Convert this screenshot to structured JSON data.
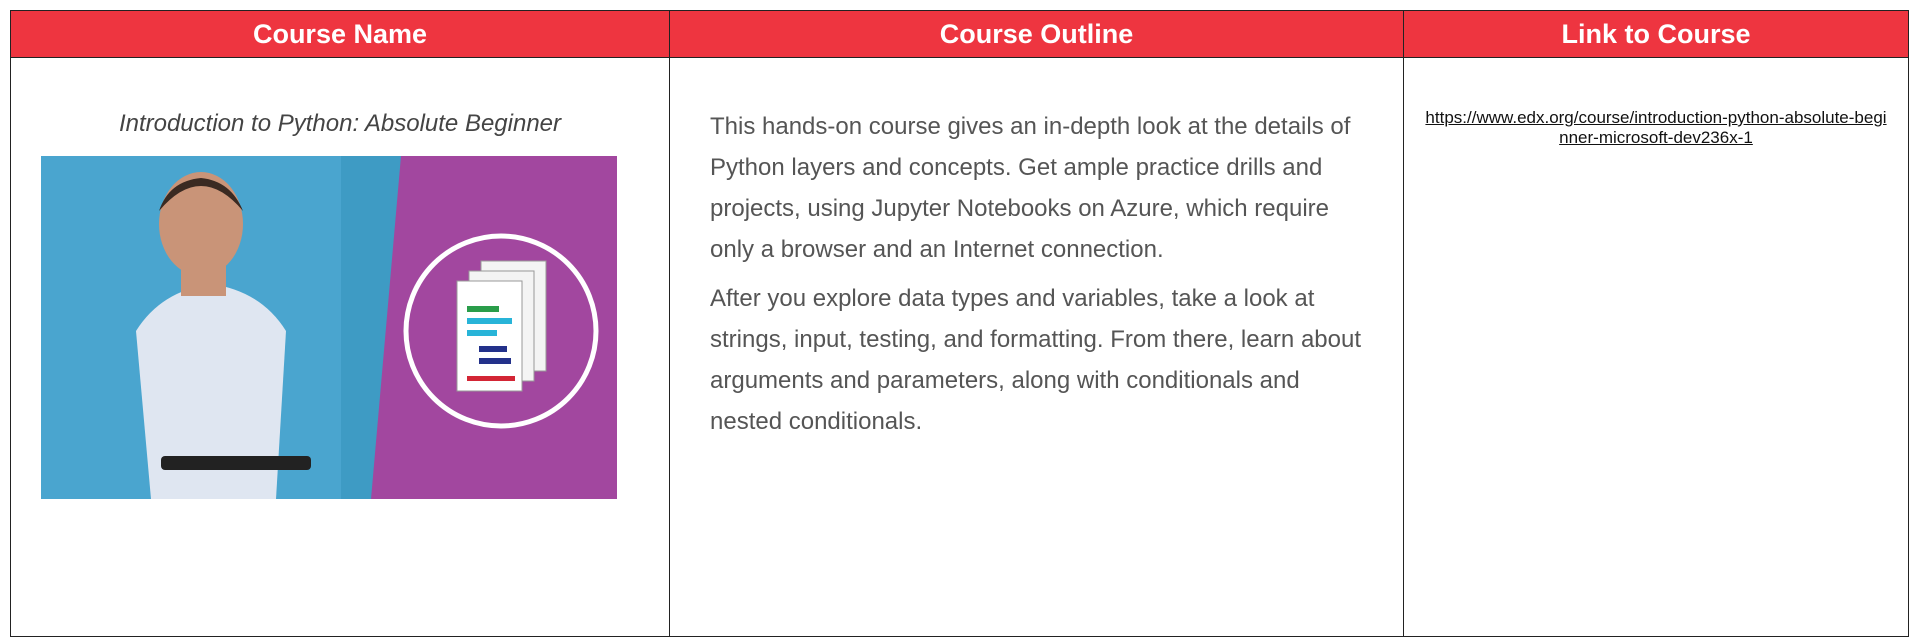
{
  "header": {
    "columns": [
      "Course Name",
      "Course Outline",
      "Link to Course"
    ]
  },
  "row": {
    "course_name": "Introduction to Python: Absolute Beginner",
    "outline": [
      "This hands-on course gives an in-depth look at the details of Python layers and concepts. Get ample practice drills and projects, using Jupyter Notebooks on Azure, which require only a browser and an Internet connection.",
      "After you explore data types and variables, take a look at strings, input, testing, and formatting. From there, learn about arguments and parameters, along with conditionals and nested conditionals."
    ],
    "link": "https://www.edx.org/course/introduction-python-absolute-beginner-microsoft-dev236x-1"
  }
}
